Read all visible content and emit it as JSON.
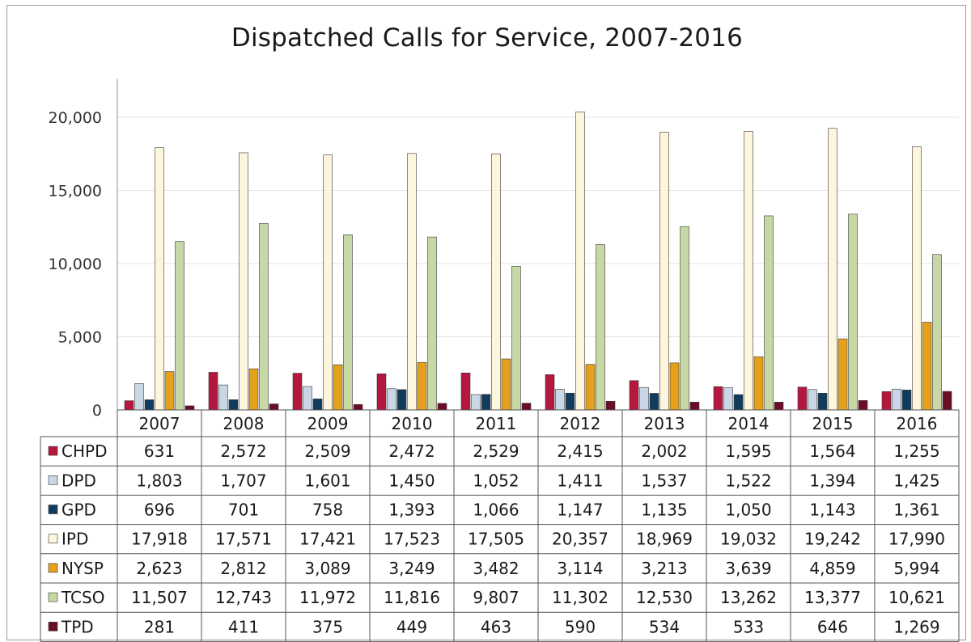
{
  "chart_data": {
    "type": "bar",
    "title": "Dispatched Calls for Service, 2007-2016",
    "categories": [
      "2007",
      "2008",
      "2009",
      "2010",
      "2011",
      "2012",
      "2013",
      "2014",
      "2015",
      "2016"
    ],
    "ylim": [
      0,
      20000
    ],
    "yticks": [
      0,
      5000,
      10000,
      15000,
      20000
    ],
    "ytick_labels": [
      "0",
      "5,000",
      "10,000",
      "15,000",
      "20,000"
    ],
    "grid": true,
    "legend": "data-table-below",
    "series": [
      {
        "name": "CHPD",
        "color": "#b5173f",
        "values": [
          631,
          2572,
          2509,
          2472,
          2529,
          2415,
          2002,
          1595,
          1564,
          1255
        ],
        "labels": [
          "631",
          "2,572",
          "2,509",
          "2,472",
          "2,529",
          "2,415",
          "2,002",
          "1,595",
          "1,564",
          "1,255"
        ]
      },
      {
        "name": "DPD",
        "color": "#c9d6e6",
        "values": [
          1803,
          1707,
          1601,
          1450,
          1052,
          1411,
          1537,
          1522,
          1394,
          1425
        ],
        "labels": [
          "1,803",
          "1,707",
          "1,601",
          "1,450",
          "1,052",
          "1,411",
          "1,537",
          "1,522",
          "1,394",
          "1,425"
        ]
      },
      {
        "name": "GPD",
        "color": "#123c5e",
        "values": [
          696,
          701,
          758,
          1393,
          1066,
          1147,
          1135,
          1050,
          1143,
          1361
        ],
        "labels": [
          "696",
          "701",
          "758",
          "1,393",
          "1,066",
          "1,147",
          "1,135",
          "1,050",
          "1,143",
          "1,361"
        ]
      },
      {
        "name": "IPD",
        "color": "#fdf6dc",
        "values": [
          17918,
          17571,
          17421,
          17523,
          17505,
          20357,
          18969,
          19032,
          19242,
          17990
        ],
        "labels": [
          "17,918",
          "17,571",
          "17,421",
          "17,523",
          "17,505",
          "20,357",
          "18,969",
          "19,032",
          "19,242",
          "17,990"
        ]
      },
      {
        "name": "NYSP",
        "color": "#e5a11c",
        "values": [
          2623,
          2812,
          3089,
          3249,
          3482,
          3114,
          3213,
          3639,
          4859,
          5994
        ],
        "labels": [
          "2,623",
          "2,812",
          "3,089",
          "3,249",
          "3,482",
          "3,114",
          "3,213",
          "3,639",
          "4,859",
          "5,994"
        ]
      },
      {
        "name": "TCSO",
        "color": "#c7d7a6",
        "values": [
          11507,
          12743,
          11972,
          11816,
          9807,
          11302,
          12530,
          13262,
          13377,
          10621
        ],
        "labels": [
          "11,507",
          "12,743",
          "11,972",
          "11,816",
          "9,807",
          "11,302",
          "12,530",
          "13,262",
          "13,377",
          "10,621"
        ]
      },
      {
        "name": "TPD",
        "color": "#6b0d26",
        "values": [
          281,
          411,
          375,
          449,
          463,
          590,
          534,
          533,
          646,
          1269
        ],
        "labels": [
          "281",
          "411",
          "375",
          "449",
          "463",
          "590",
          "534",
          "533",
          "646",
          "1,269"
        ]
      }
    ]
  }
}
